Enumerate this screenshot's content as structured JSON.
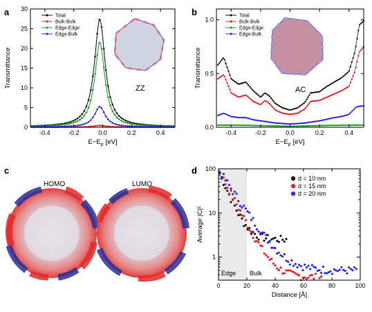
{
  "panels": {
    "a": {
      "letter": "a"
    },
    "b": {
      "letter": "b"
    },
    "c": {
      "letter": "c",
      "homo_label": "HOMO",
      "lumo_label": "LUMO"
    },
    "d": {
      "letter": "d"
    }
  },
  "colors": {
    "total": "#1a1a1a",
    "bulk_bulk": "#e8262a",
    "edge_edge": "#22a12b",
    "edge_bulk": "#2a2ff0",
    "blue_dark": "#1d1f8a",
    "red": "#e03030",
    "grey_band": "#eaeaea"
  },
  "chart_data": [
    {
      "id": "a",
      "type": "line",
      "xlabel": "E−E",
      "xlabel_sub": "F",
      "xlabel_unit": " [eV]",
      "ylabel": "Transmittance",
      "xlim": [
        -0.5,
        0.5
      ],
      "ylim": [
        0,
        30
      ],
      "xticks": [
        -0.4,
        -0.2,
        0.0,
        0.2,
        0.4
      ],
      "xtick_labels": [
        "-0.4",
        "-0.2",
        "0.0",
        "0.2",
        "0.4"
      ],
      "yticks": [
        0,
        5,
        10,
        15,
        20,
        25,
        30
      ],
      "ytick_labels": [
        "0",
        "5",
        "10",
        "15",
        "20",
        "25",
        "30"
      ],
      "legend": [
        "Total",
        "Bulk-Bulk",
        "Edge-Edge",
        "Edge-Bulk"
      ],
      "annotation": "ZZ",
      "series": [
        {
          "name": "Total",
          "model": "lorentz",
          "peak": 27.3,
          "center": -0.02,
          "width": 0.09,
          "base": 0.1
        },
        {
          "name": "Bulk-Bulk",
          "model": "lorentz",
          "peak": 0.4,
          "center": -0.02,
          "width": 0.1,
          "base": 0.05
        },
        {
          "name": "Edge-Edge",
          "model": "lorentz",
          "peak": 21.5,
          "center": -0.02,
          "width": 0.085,
          "base": 0.05
        },
        {
          "name": "Edge-Bulk",
          "model": "lorentz",
          "peak": 5.2,
          "center": -0.02,
          "width": 0.09,
          "base": 0.05
        }
      ]
    },
    {
      "id": "b",
      "type": "line",
      "xlabel": "E−E",
      "xlabel_sub": "F",
      "xlabel_unit": " [eV]",
      "ylabel": "Transmittance",
      "xlim": [
        -0.5,
        0.5
      ],
      "ylim": [
        0,
        1.1
      ],
      "xticks": [
        -0.4,
        -0.2,
        0.0,
        0.2,
        0.4
      ],
      "xtick_labels": [
        "-0.4",
        "-0.2",
        "0.0",
        "0.2",
        "0.4"
      ],
      "yticks": [
        0.0,
        0.5,
        1.0
      ],
      "ytick_labels": [
        "0.0",
        "0.5",
        "1.0"
      ],
      "legend": [
        "Total",
        "Bulk-Bulk",
        "Edge-Edge",
        "Edge-Bulk"
      ],
      "annotation": "AC",
      "series": [
        {
          "name": "Total",
          "x": [
            -0.49,
            -0.45,
            -0.4,
            -0.35,
            -0.3,
            -0.25,
            -0.2,
            -0.17,
            -0.14,
            -0.1,
            -0.05,
            0.0,
            0.05,
            0.1,
            0.14,
            0.2,
            0.25,
            0.3,
            0.35,
            0.4,
            0.44,
            0.47,
            0.5
          ],
          "y": [
            0.58,
            0.65,
            0.45,
            0.4,
            0.42,
            0.34,
            0.28,
            0.32,
            0.29,
            0.22,
            0.18,
            0.16,
            0.18,
            0.23,
            0.32,
            0.33,
            0.38,
            0.42,
            0.46,
            0.52,
            0.7,
            0.95,
            0.99
          ]
        },
        {
          "name": "Bulk-Bulk",
          "x": [
            -0.49,
            -0.45,
            -0.4,
            -0.35,
            -0.3,
            -0.25,
            -0.2,
            -0.17,
            -0.14,
            -0.1,
            -0.05,
            0.0,
            0.05,
            0.1,
            0.14,
            0.2,
            0.25,
            0.3,
            0.35,
            0.4,
            0.44,
            0.47,
            0.5
          ],
          "y": [
            0.45,
            0.49,
            0.32,
            0.28,
            0.3,
            0.24,
            0.21,
            0.25,
            0.22,
            0.16,
            0.13,
            0.12,
            0.13,
            0.17,
            0.24,
            0.25,
            0.28,
            0.31,
            0.34,
            0.38,
            0.52,
            0.7,
            0.75
          ]
        },
        {
          "name": "Edge-Edge",
          "x": [
            -0.49,
            -0.3,
            -0.1,
            0.0,
            0.1,
            0.3,
            0.5
          ],
          "y": [
            0.02,
            0.018,
            0.012,
            0.01,
            0.012,
            0.018,
            0.02
          ]
        },
        {
          "name": "Edge-Bulk",
          "x": [
            -0.49,
            -0.45,
            -0.4,
            -0.35,
            -0.3,
            -0.25,
            -0.2,
            -0.1,
            0.0,
            0.1,
            0.2,
            0.3,
            0.35,
            0.4,
            0.45,
            0.5
          ],
          "y": [
            0.11,
            0.13,
            0.1,
            0.09,
            0.09,
            0.07,
            0.06,
            0.04,
            0.03,
            0.04,
            0.06,
            0.09,
            0.1,
            0.12,
            0.19,
            0.2
          ]
        }
      ]
    },
    {
      "id": "d",
      "type": "scatter",
      "xlabel": "Distance [Å]",
      "ylabel": "Average |C|²",
      "ylog": true,
      "xlim": [
        0,
        100
      ],
      "ylim": [
        0.3,
        100
      ],
      "xticks": [
        0,
        20,
        40,
        60,
        80,
        100
      ],
      "xtick_labels": [
        "0",
        "20",
        "40",
        "60",
        "80",
        "100"
      ],
      "yticks": [
        1,
        10,
        100
      ],
      "ytick_labels": [
        "1",
        "10",
        "100"
      ],
      "edge_region": [
        0,
        20
      ],
      "region_labels": [
        "Edge",
        "Bulk"
      ],
      "series": [
        {
          "name": "d = 10 nm",
          "x_max": 48,
          "y0": 95,
          "y_inf": 2.5,
          "decay": 5.5
        },
        {
          "name": "d = 15 nm",
          "x_max": 73,
          "y0": 95,
          "y_inf": 0.35,
          "decay": 7.0
        },
        {
          "name": "d = 20 nm",
          "x_max": 98,
          "y0": 95,
          "y_inf": 0.5,
          "decay": 9.0
        }
      ]
    }
  ]
}
